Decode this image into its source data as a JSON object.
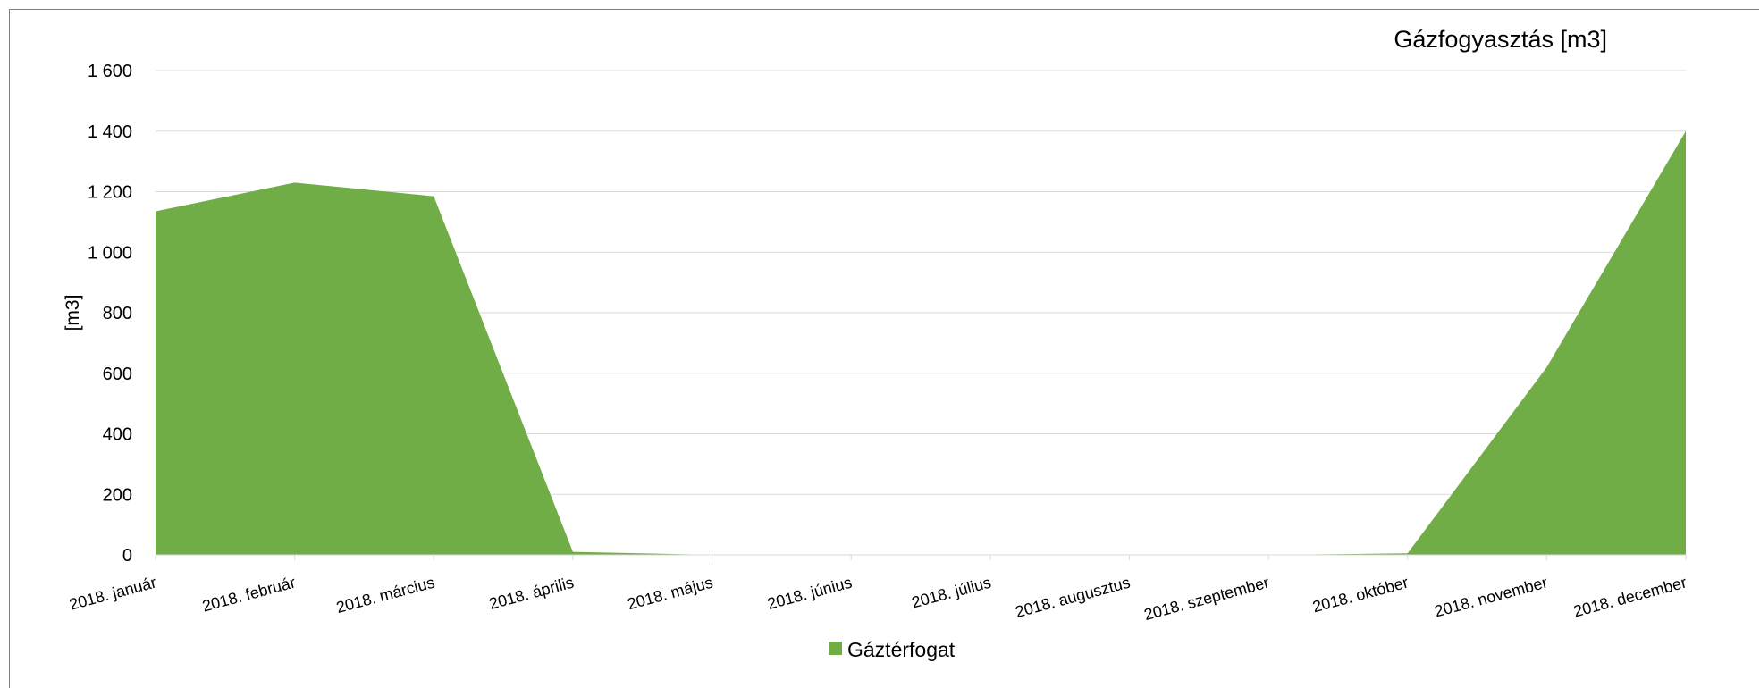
{
  "chart_data": {
    "type": "area",
    "title": "Gázfogyasztás [m3]",
    "xlabel": "",
    "ylabel": "[m3]",
    "ylim": [
      0,
      1600
    ],
    "yticks": [
      0,
      200,
      400,
      600,
      800,
      1000,
      1200,
      1400,
      1600
    ],
    "ytick_labels": [
      "0",
      "200",
      "400",
      "600",
      "800",
      "1 000",
      "1 200",
      "1 400",
      "1 600"
    ],
    "categories": [
      "2018. január",
      "2018. február",
      "2018. március",
      "2018. április",
      "2018. május",
      "2018. június",
      "2018. július",
      "2018. augusztus",
      "2018. szeptember",
      "2018. október",
      "2018. november",
      "2018. december"
    ],
    "series": [
      {
        "name": "Gáztérfogat",
        "color": "#70ad47",
        "values": [
          1135,
          1230,
          1185,
          10,
          0,
          0,
          0,
          0,
          0,
          5,
          620,
          1400
        ]
      }
    ],
    "grid": true,
    "legend_position": "bottom"
  }
}
